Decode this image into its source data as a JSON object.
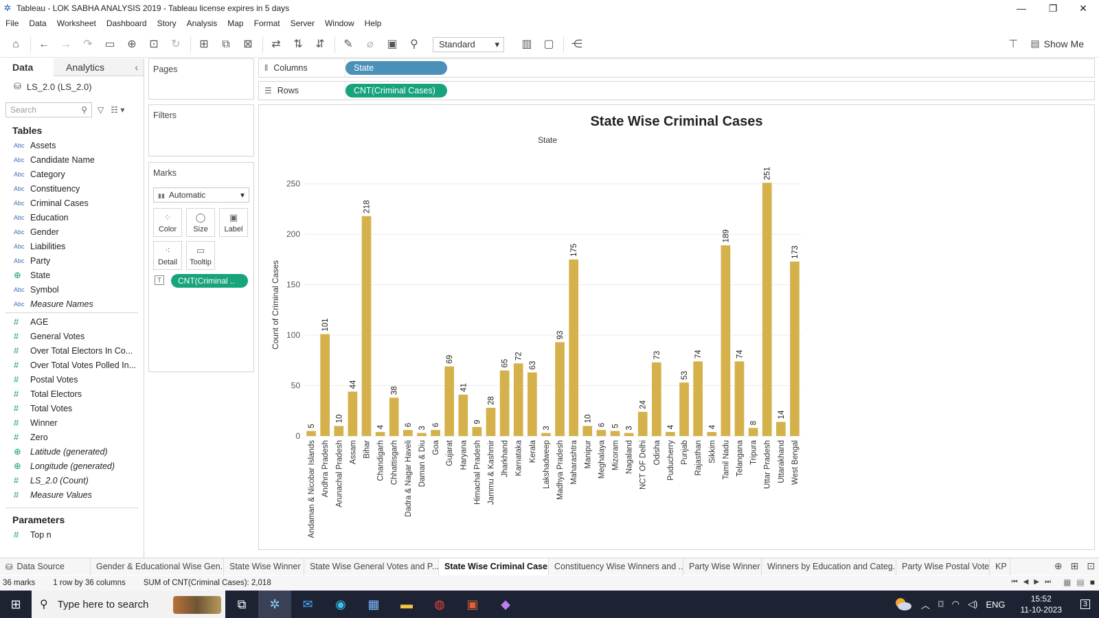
{
  "window": {
    "title": "Tableau - LOK SABHA ANALYSIS 2019 - Tableau license expires in 5 days",
    "controls": [
      "—",
      "❐",
      "✕"
    ]
  },
  "menu": [
    "File",
    "Data",
    "Worksheet",
    "Dashboard",
    "Story",
    "Analysis",
    "Map",
    "Format",
    "Server",
    "Window",
    "Help"
  ],
  "toolbar": {
    "fit_select": "Standard",
    "show_me": "Show Me"
  },
  "data_pane": {
    "tabs": [
      "Data",
      "Analytics"
    ],
    "data_source": "LS_2.0 (LS_2.0)",
    "search_placeholder": "Search",
    "tables_heading": "Tables",
    "dimensions": [
      {
        "type": "Abc",
        "name": "Assets"
      },
      {
        "type": "Abc",
        "name": "Candidate Name"
      },
      {
        "type": "Abc",
        "name": "Category"
      },
      {
        "type": "Abc",
        "name": "Constituency"
      },
      {
        "type": "Abc",
        "name": "Criminal Cases"
      },
      {
        "type": "Abc",
        "name": "Education"
      },
      {
        "type": "Abc",
        "name": "Gender"
      },
      {
        "type": "Abc",
        "name": "Liabilities"
      },
      {
        "type": "Abc",
        "name": "Party"
      },
      {
        "type": "geo",
        "name": "State"
      },
      {
        "type": "Abc",
        "name": "Symbol"
      },
      {
        "type": "Abc",
        "name": "Measure Names",
        "italic": true
      }
    ],
    "measures": [
      {
        "type": "#",
        "name": "AGE"
      },
      {
        "type": "#",
        "name": "General Votes"
      },
      {
        "type": "#",
        "name": "Over Total Electors  In Co..."
      },
      {
        "type": "#",
        "name": "Over Total Votes Polled  In..."
      },
      {
        "type": "#",
        "name": "Postal Votes"
      },
      {
        "type": "#",
        "name": "Total Electors"
      },
      {
        "type": "#",
        "name": "Total Votes"
      },
      {
        "type": "#",
        "name": "Winner"
      },
      {
        "type": "#",
        "name": "Zero"
      },
      {
        "type": "geo",
        "name": "Latitude (generated)",
        "italic": true
      },
      {
        "type": "geo",
        "name": "Longitude (generated)",
        "italic": true
      },
      {
        "type": "#",
        "name": "LS_2.0 (Count)",
        "italic": true
      },
      {
        "type": "#",
        "name": "Measure Values",
        "italic": true
      }
    ],
    "parameters_heading": "Parameters",
    "parameters": [
      {
        "type": "#",
        "name": "Top n"
      }
    ]
  },
  "cards": {
    "pages": "Pages",
    "filters": "Filters",
    "marks": "Marks",
    "mark_type": "Automatic",
    "mark_buttons": [
      "Color",
      "Size",
      "Label",
      "Detail",
      "Tooltip"
    ],
    "mark_pill": "CNT(Criminal .."
  },
  "shelves": {
    "columns_label": "Columns",
    "columns_pill": "State",
    "rows_label": "Rows",
    "rows_pill": "CNT(Criminal Cases)"
  },
  "chart_data": {
    "type": "bar",
    "title": "State Wise Criminal Cases",
    "header": "State",
    "ylabel": "Count of Criminal Cases",
    "ylim": [
      0,
      260
    ],
    "yticks": [
      0,
      50,
      100,
      150,
      200,
      250
    ],
    "bar_color": "#d4b14a",
    "grid": true,
    "categories": [
      "Andaman & Nicobar Islands",
      "Andhra Pradesh",
      "Arunachal Pradesh",
      "Assam",
      "Bihar",
      "Chandigarh",
      "Chhattisgarh",
      "Dadra & Nagar Haveli",
      "Daman & Diu",
      "Goa",
      "Gujarat",
      "Haryana",
      "Himachal Pradesh",
      "Jammu & Kashmir",
      "Jharkhand",
      "Karnataka",
      "Kerala",
      "Lakshadweep",
      "Madhya Pradesh",
      "Maharashtra",
      "Manipur",
      "Meghalaya",
      "Mizoram",
      "Nagaland",
      "NCT OF Delhi",
      "Odisha",
      "Puducherry",
      "Punjab",
      "Rajasthan",
      "Sikkim",
      "Tamil Nadu",
      "Telangana",
      "Tripura",
      "Uttar Pradesh",
      "Uttarakhand",
      "West Bengal"
    ],
    "values": [
      5,
      101,
      10,
      44,
      218,
      4,
      38,
      6,
      3,
      6,
      69,
      41,
      9,
      28,
      65,
      72,
      63,
      3,
      93,
      175,
      10,
      6,
      5,
      3,
      24,
      73,
      4,
      53,
      74,
      4,
      189,
      74,
      8,
      251,
      14,
      173
    ]
  },
  "sheet_tabs": [
    "Data Source",
    "Gender & Educational Wise Gen...",
    "State Wise Winner",
    "State Wise General Votes and P...",
    "State Wise Criminal Cases",
    "Constituency Wise Winners and ...",
    "Party Wise Winner",
    "Winners by Education and Categ...",
    "Party Wise Postal Votes",
    "KP"
  ],
  "active_tab": "State Wise Criminal Cases",
  "status": {
    "marks": "36 marks",
    "layout": "1 row by 36 columns",
    "sum": "SUM of CNT(Criminal Cases): 2,018"
  },
  "taskbar": {
    "search_placeholder": "Type here to search",
    "lang": "ENG",
    "time": "15:52",
    "date": "11-10-2023",
    "notif_count": "3"
  }
}
